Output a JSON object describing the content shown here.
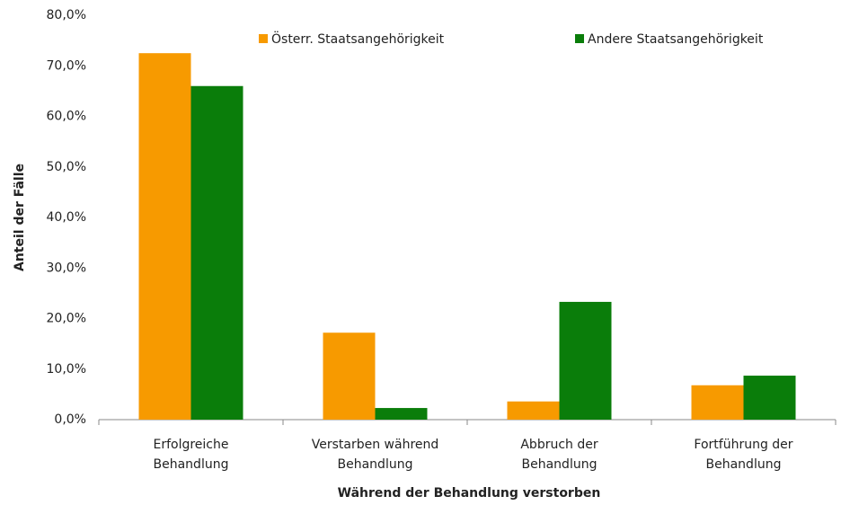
{
  "chart_data": {
    "type": "bar",
    "xlabel": "Während der Behandlung verstorben",
    "ylabel": "Anteil der Fälle",
    "categories": [
      "Erfolgreiche\nBehandlung",
      "Verstarben während\nBehandlung",
      "Abbruch der\nBehandlung",
      "Fortführung der\nBehandlung"
    ],
    "series": [
      {
        "name": "Österr. Staatsangehörigkeit",
        "color": "#f79a00",
        "values": [
          72.5,
          17.2,
          3.6,
          6.8
        ]
      },
      {
        "name": "Andere Staatsangehörigkeit",
        "color": "#0a7d0a",
        "values": [
          66.0,
          2.3,
          23.3,
          8.7
        ]
      }
    ],
    "ylim": [
      0,
      80
    ],
    "yticks": [
      {
        "value": 0,
        "label": "0,0%"
      },
      {
        "value": 10,
        "label": "10,0%"
      },
      {
        "value": 20,
        "label": "20,0%"
      },
      {
        "value": 30,
        "label": "30,0%"
      },
      {
        "value": 40,
        "label": "40,0%"
      },
      {
        "value": 50,
        "label": "50,0%"
      },
      {
        "value": 60,
        "label": "60,0%"
      },
      {
        "value": 70,
        "label": "70,0%"
      },
      {
        "value": 80,
        "label": "80,0%"
      }
    ],
    "grid": false,
    "legend": "top"
  }
}
